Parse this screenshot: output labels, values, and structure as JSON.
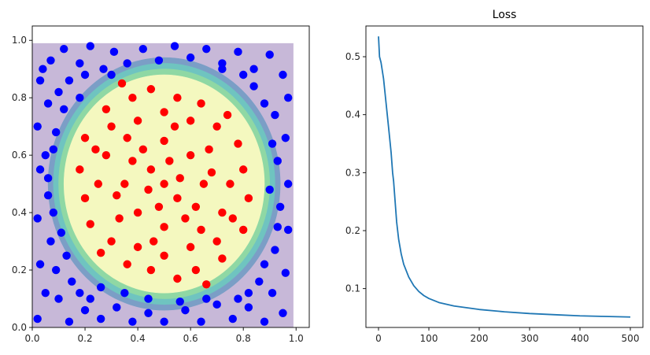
{
  "chart_data": [
    {
      "type": "scatter",
      "title": "",
      "xlabel": "",
      "ylabel": "",
      "xlim": [
        0.0,
        1.05
      ],
      "ylim": [
        0.0,
        1.05
      ],
      "xticks": [
        "0.0",
        "0.2",
        "0.4",
        "0.6",
        "0.8",
        "1.0"
      ],
      "yticks": [
        "0.0",
        "0.2",
        "0.4",
        "0.6",
        "0.8",
        "1.0"
      ],
      "grid": false,
      "background_contour": {
        "description_visible": "filled decision-boundary contour",
        "center": [
          0.5,
          0.5
        ],
        "inner_radius": 0.38,
        "outer_radius": 0.44,
        "region": [
          0.0,
          0.99,
          0.0,
          0.99
        ],
        "colors": [
          "#c7b8d8",
          "#7b9ec6",
          "#6fc4c0",
          "#8fd8a4",
          "#f4f8bf"
        ]
      },
      "series": [
        {
          "class": "outside",
          "color": "#0000ff",
          "points": [
            [
              0.02,
              0.03
            ],
            [
              0.05,
              0.12
            ],
            [
              0.03,
              0.22
            ],
            [
              0.07,
              0.3
            ],
            [
              0.02,
              0.38
            ],
            [
              0.06,
              0.46
            ],
            [
              0.03,
              0.55
            ],
            [
              0.08,
              0.62
            ],
            [
              0.02,
              0.7
            ],
            [
              0.06,
              0.78
            ],
            [
              0.03,
              0.86
            ],
            [
              0.07,
              0.93
            ],
            [
              0.12,
              0.97
            ],
            [
              0.18,
              0.92
            ],
            [
              0.22,
              0.98
            ],
            [
              0.27,
              0.9
            ],
            [
              0.31,
              0.96
            ],
            [
              0.36,
              0.92
            ],
            [
              0.42,
              0.97
            ],
            [
              0.48,
              0.93
            ],
            [
              0.54,
              0.98
            ],
            [
              0.6,
              0.94
            ],
            [
              0.66,
              0.97
            ],
            [
              0.72,
              0.92
            ],
            [
              0.78,
              0.96
            ],
            [
              0.84,
              0.9
            ],
            [
              0.9,
              0.95
            ],
            [
              0.95,
              0.88
            ],
            [
              0.97,
              0.8
            ],
            [
              0.92,
              0.74
            ],
            [
              0.96,
              0.66
            ],
            [
              0.93,
              0.58
            ],
            [
              0.97,
              0.5
            ],
            [
              0.94,
              0.42
            ],
            [
              0.97,
              0.34
            ],
            [
              0.92,
              0.27
            ],
            [
              0.96,
              0.19
            ],
            [
              0.91,
              0.12
            ],
            [
              0.95,
              0.05
            ],
            [
              0.88,
              0.02
            ],
            [
              0.82,
              0.07
            ],
            [
              0.76,
              0.03
            ],
            [
              0.7,
              0.08
            ],
            [
              0.64,
              0.02
            ],
            [
              0.58,
              0.06
            ],
            [
              0.5,
              0.02
            ],
            [
              0.44,
              0.05
            ],
            [
              0.38,
              0.02
            ],
            [
              0.32,
              0.07
            ],
            [
              0.26,
              0.03
            ],
            [
              0.2,
              0.06
            ],
            [
              0.14,
              0.02
            ],
            [
              0.1,
              0.1
            ],
            [
              0.15,
              0.16
            ],
            [
              0.09,
              0.2
            ],
            [
              0.13,
              0.25
            ],
            [
              0.1,
              0.82
            ],
            [
              0.14,
              0.86
            ],
            [
              0.18,
              0.8
            ],
            [
              0.12,
              0.76
            ],
            [
              0.2,
              0.88
            ],
            [
              0.84,
              0.84
            ],
            [
              0.88,
              0.78
            ],
            [
              0.8,
              0.88
            ],
            [
              0.86,
              0.16
            ],
            [
              0.82,
              0.12
            ],
            [
              0.88,
              0.22
            ],
            [
              0.78,
              0.1
            ],
            [
              0.22,
              0.1
            ],
            [
              0.26,
              0.14
            ],
            [
              0.18,
              0.12
            ],
            [
              0.04,
              0.9
            ],
            [
              0.09,
              0.68
            ],
            [
              0.05,
              0.6
            ],
            [
              0.91,
              0.64
            ],
            [
              0.93,
              0.35
            ],
            [
              0.08,
              0.4
            ],
            [
              0.11,
              0.33
            ],
            [
              0.35,
              0.12
            ],
            [
              0.66,
              0.1
            ],
            [
              0.72,
              0.9
            ],
            [
              0.3,
              0.88
            ],
            [
              0.9,
              0.48
            ],
            [
              0.06,
              0.52
            ],
            [
              0.44,
              0.1
            ],
            [
              0.56,
              0.09
            ]
          ]
        },
        {
          "class": "inside",
          "color": "#ff0000",
          "points": [
            [
              0.5,
              0.5
            ],
            [
              0.45,
              0.55
            ],
            [
              0.55,
              0.45
            ],
            [
              0.4,
              0.4
            ],
            [
              0.6,
              0.6
            ],
            [
              0.35,
              0.5
            ],
            [
              0.65,
              0.5
            ],
            [
              0.5,
              0.35
            ],
            [
              0.5,
              0.65
            ],
            [
              0.3,
              0.3
            ],
            [
              0.7,
              0.7
            ],
            [
              0.3,
              0.7
            ],
            [
              0.7,
              0.3
            ],
            [
              0.25,
              0.5
            ],
            [
              0.75,
              0.5
            ],
            [
              0.5,
              0.25
            ],
            [
              0.5,
              0.75
            ],
            [
              0.42,
              0.62
            ],
            [
              0.58,
              0.38
            ],
            [
              0.38,
              0.58
            ],
            [
              0.62,
              0.42
            ],
            [
              0.2,
              0.45
            ],
            [
              0.8,
              0.55
            ],
            [
              0.45,
              0.2
            ],
            [
              0.55,
              0.8
            ],
            [
              0.28,
              0.6
            ],
            [
              0.72,
              0.4
            ],
            [
              0.6,
              0.28
            ],
            [
              0.4,
              0.72
            ],
            [
              0.33,
              0.38
            ],
            [
              0.67,
              0.62
            ],
            [
              0.36,
              0.66
            ],
            [
              0.64,
              0.34
            ],
            [
              0.22,
              0.36
            ],
            [
              0.78,
              0.64
            ],
            [
              0.36,
              0.22
            ],
            [
              0.64,
              0.78
            ],
            [
              0.24,
              0.62
            ],
            [
              0.76,
              0.38
            ],
            [
              0.62,
              0.2
            ],
            [
              0.38,
              0.8
            ],
            [
              0.18,
              0.55
            ],
            [
              0.82,
              0.45
            ],
            [
              0.55,
              0.17
            ],
            [
              0.45,
              0.83
            ],
            [
              0.28,
              0.76
            ],
            [
              0.72,
              0.24
            ],
            [
              0.26,
              0.26
            ],
            [
              0.74,
              0.74
            ],
            [
              0.48,
              0.42
            ],
            [
              0.52,
              0.58
            ],
            [
              0.44,
              0.48
            ],
            [
              0.56,
              0.52
            ],
            [
              0.32,
              0.46
            ],
            [
              0.68,
              0.54
            ],
            [
              0.46,
              0.3
            ],
            [
              0.54,
              0.7
            ],
            [
              0.4,
              0.28
            ],
            [
              0.6,
              0.72
            ],
            [
              0.2,
              0.66
            ],
            [
              0.8,
              0.34
            ],
            [
              0.34,
              0.85
            ],
            [
              0.66,
              0.15
            ]
          ]
        }
      ]
    },
    {
      "type": "line",
      "title": "Loss",
      "xlabel": "",
      "ylabel": "",
      "xlim": [
        -25,
        525
      ],
      "ylim": [
        0.033,
        0.553
      ],
      "xticks": [
        "0",
        "100",
        "200",
        "300",
        "400",
        "500"
      ],
      "yticks": [
        "0.1",
        "0.2",
        "0.3",
        "0.4",
        "0.5"
      ],
      "grid": false,
      "line_color": "#1f77b4",
      "x": [
        0,
        2,
        5,
        10,
        15,
        20,
        25,
        28,
        30,
        33,
        36,
        40,
        45,
        50,
        60,
        70,
        80,
        90,
        100,
        120,
        150,
        200,
        250,
        300,
        350,
        400,
        450,
        500
      ],
      "y": [
        0.535,
        0.5,
        0.49,
        0.462,
        0.42,
        0.378,
        0.335,
        0.3,
        0.285,
        0.25,
        0.215,
        0.185,
        0.16,
        0.142,
        0.12,
        0.105,
        0.095,
        0.088,
        0.083,
        0.076,
        0.07,
        0.064,
        0.06,
        0.057,
        0.055,
        0.053,
        0.052,
        0.051
      ]
    }
  ]
}
